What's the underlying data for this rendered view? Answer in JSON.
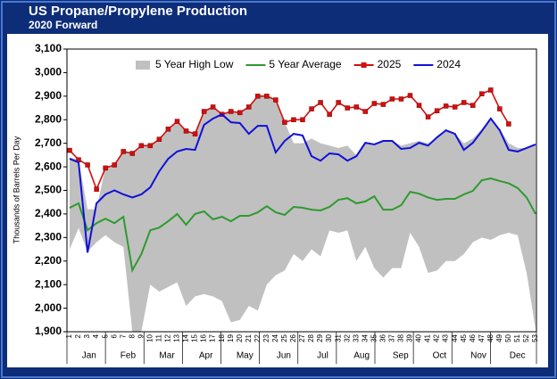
{
  "chart_data": {
    "type": "line",
    "title": "US Propane/Propylene Production",
    "subtitle": "2020 Forward",
    "y_label": "Thousands of Barrels Per Day",
    "categories": [
      "1",
      "2",
      "3",
      "4",
      "5",
      "6",
      "7",
      "8",
      "9",
      "10",
      "11",
      "12",
      "13",
      "14",
      "15",
      "16",
      "17",
      "18",
      "19",
      "20",
      "21",
      "22",
      "23",
      "24",
      "25",
      "26",
      "27",
      "28",
      "29",
      "30",
      "31",
      "32",
      "33",
      "34",
      "35",
      "36",
      "37",
      "38",
      "39",
      "40",
      "41",
      "42",
      "43",
      "44",
      "45",
      "46",
      "47",
      "48",
      "49",
      "50",
      "51",
      "52",
      "53"
    ],
    "months": [
      "Jan",
      "Feb",
      "Mar",
      "Apr",
      "May",
      "Jun",
      "Jul",
      "Aug",
      "Sep",
      "Oct",
      "Nov",
      "Dec"
    ],
    "ylim": [
      1900,
      3100
    ],
    "yticks": [
      {
        "value": 1900,
        "label": "1,900"
      },
      {
        "value": 2000,
        "label": "2,000"
      },
      {
        "value": 2100,
        "label": "2,100"
      },
      {
        "value": 2200,
        "label": "2,200"
      },
      {
        "value": 2300,
        "label": "2,300"
      },
      {
        "value": 2400,
        "label": "2,400"
      },
      {
        "value": 2500,
        "label": "2,500"
      },
      {
        "value": 2600,
        "label": "2,600"
      },
      {
        "value": 2700,
        "label": "2,700"
      },
      {
        "value": 2800,
        "label": "2,800"
      },
      {
        "value": 2900,
        "label": "2,900"
      },
      {
        "value": 3000,
        "label": "3,000"
      },
      {
        "value": 3100,
        "label": "3,100"
      }
    ],
    "legend": "top",
    "series": [
      {
        "name": "5 Year High Low",
        "kind": "band",
        "color": "#c0c0c0",
        "high": [
          2640,
          2630,
          2420,
          2420,
          2600,
          2610,
          2670,
          2660,
          2690,
          2690,
          2720,
          2760,
          2790,
          2750,
          2740,
          2835,
          2855,
          2825,
          2835,
          2830,
          2855,
          2900,
          2900,
          2885,
          2790,
          2700,
          2700,
          2720,
          2700,
          2690,
          2680,
          2690,
          2650,
          2700,
          2690,
          2710,
          2710,
          2690,
          2700,
          2710,
          2700,
          2720,
          2760,
          2740,
          2700,
          2720,
          2760,
          2810,
          2760,
          2700,
          2680,
          2680,
          2690
        ],
        "low": [
          2250,
          2340,
          2240,
          2280,
          2310,
          2280,
          2260,
          1900,
          1900,
          2100,
          2070,
          2090,
          2110,
          2010,
          2050,
          2060,
          2050,
          2030,
          1940,
          1950,
          2010,
          1990,
          2100,
          2140,
          2160,
          2230,
          2200,
          2250,
          2220,
          2330,
          2320,
          2330,
          2200,
          2260,
          2170,
          2130,
          2170,
          2170,
          2320,
          2260,
          2150,
          2160,
          2200,
          2200,
          2230,
          2280,
          2300,
          2290,
          2310,
          2320,
          2310,
          2150,
          1910
        ]
      },
      {
        "name": "5 Year Average",
        "kind": "line",
        "color": "#2e9a2e",
        "values": [
          2426,
          2445,
          2331,
          2361,
          2380,
          2361,
          2388,
          2161,
          2229,
          2331,
          2342,
          2369,
          2400,
          2354,
          2400,
          2411,
          2377,
          2388,
          2369,
          2392,
          2392,
          2407,
          2433,
          2407,
          2396,
          2430,
          2426,
          2418,
          2415,
          2430,
          2460,
          2467,
          2445,
          2453,
          2475,
          2418,
          2418,
          2437,
          2494,
          2486,
          2470,
          2460,
          2464,
          2464,
          2483,
          2498,
          2543,
          2551,
          2540,
          2530,
          2510,
          2470,
          2400
        ]
      },
      {
        "name": "2025",
        "kind": "marker-line",
        "color": "#d01010",
        "values": [
          2670,
          2630,
          2608,
          2505,
          2595,
          2608,
          2665,
          2657,
          2690,
          2690,
          2717,
          2760,
          2793,
          2752,
          2740,
          2835,
          2854,
          2823,
          2835,
          2830,
          2854,
          2900,
          2900,
          2884,
          2789,
          2800,
          2800,
          2846,
          2873,
          2823,
          2873,
          2850,
          2854,
          2835,
          2869,
          2865,
          2888,
          2888,
          2903,
          2861,
          2812,
          2838,
          2858,
          2854,
          2873,
          2861,
          2910,
          2926,
          2846,
          2782,
          null,
          null,
          null
        ]
      },
      {
        "name": "2024",
        "kind": "line",
        "color": "#1010d8",
        "values": [
          2634,
          2619,
          2236,
          2445,
          2483,
          2500,
          2483,
          2470,
          2483,
          2513,
          2581,
          2634,
          2665,
          2676,
          2672,
          2778,
          2805,
          2823,
          2789,
          2786,
          2740,
          2774,
          2774,
          2661,
          2710,
          2740,
          2733,
          2645,
          2626,
          2657,
          2653,
          2626,
          2645,
          2702,
          2695,
          2710,
          2710,
          2676,
          2680,
          2702,
          2690,
          2725,
          2755,
          2740,
          2672,
          2702,
          2752,
          2805,
          2755,
          2672,
          2665,
          2680,
          2695
        ]
      }
    ]
  }
}
